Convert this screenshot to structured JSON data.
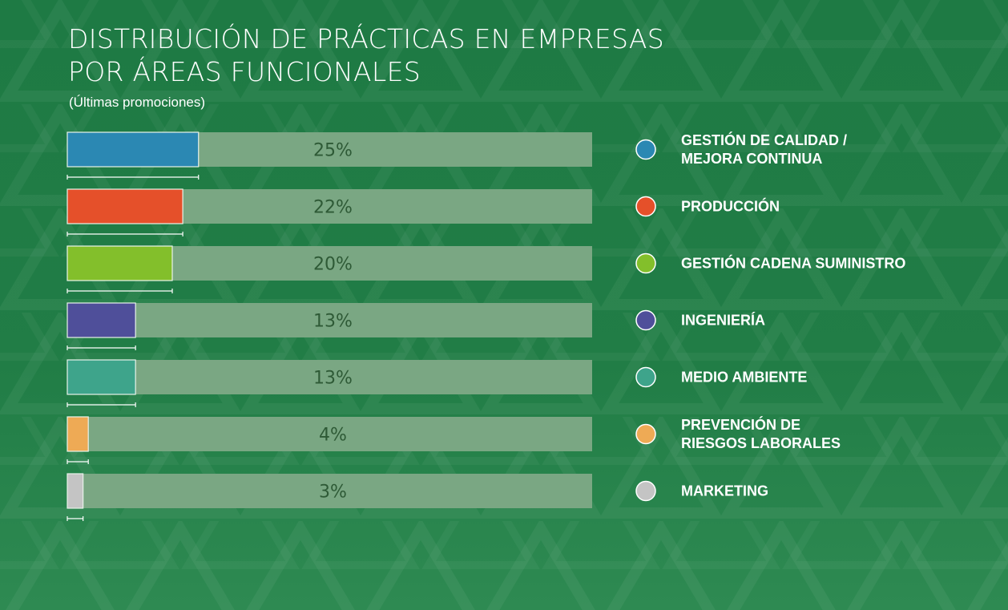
{
  "header": {
    "title_line1": "DISTRIBUCIÓN DE PRÁCTICAS EN EMPRESAS",
    "title_line2": "POR ÁREAS FUNCIONALES",
    "subtitle": "(Últimas promociones)"
  },
  "colors": {
    "background": "#217d46",
    "track": "#7aa783",
    "value_text": "#2e5a36"
  },
  "chart_data": {
    "type": "bar",
    "orientation": "horizontal",
    "xlim": [
      0,
      100
    ],
    "grid": false,
    "legend_position": "right",
    "categories": [
      [
        "GESTIÓN DE CALIDAD /",
        "MEJORA CONTINUA"
      ],
      [
        "PRODUCCIÓN"
      ],
      [
        "GESTIÓN CADENA SUMINISTRO"
      ],
      [
        "INGENIERÍA"
      ],
      [
        "MEDIO AMBIENTE"
      ],
      [
        "PREVENCIÓN DE",
        "RIESGOS LABORALES"
      ],
      [
        "MARKETING"
      ]
    ],
    "values": [
      25,
      22,
      20,
      13,
      13,
      4,
      3
    ],
    "value_labels": [
      "25%",
      "22%",
      "20%",
      "13%",
      "13%",
      "4%",
      "3%"
    ],
    "colors": [
      "#2b88b3",
      "#e5502a",
      "#83bf2b",
      "#4f4f9a",
      "#3ea48b",
      "#eeaa55",
      "#c4c4c4"
    ]
  }
}
